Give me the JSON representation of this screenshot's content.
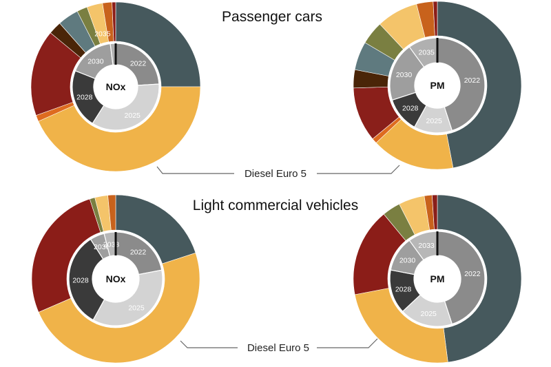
{
  "titles": {
    "top": "Passenger cars",
    "bottom": "Light commercial vehicles"
  },
  "callouts": {
    "top": "Diesel Euro 5",
    "bottom": "Diesel Euro 5"
  },
  "colors": {
    "slate": "#46595d",
    "gold": "#f0b349",
    "orange": "#de6b1f",
    "red": "#8a1f1a",
    "brown": "#4a2508",
    "teal": "#5f7a7f",
    "olive": "#7a7f41",
    "lightgold": "#f4c46a",
    "darkorange": "#c8621c",
    "darkred": "#8b1d18",
    "yr2022": "#8b8b8b",
    "yr2025": "#d3d3d3",
    "yr2028": "#3a3a3a",
    "yr2030": "#9e9e9e",
    "yr2033": "#b7b7b7",
    "yr2035": "#b0b0b0"
  },
  "chart_data": [
    {
      "type": "pie",
      "group": "Passenger cars",
      "center_label": "NOx",
      "outer": [
        {
          "value": 25.0,
          "color": "slate"
        },
        {
          "value": 43.3,
          "color": "gold"
        },
        {
          "value": 1.2,
          "color": "orange"
        },
        {
          "value": 16.5,
          "color": "red"
        },
        {
          "value": 2.5,
          "color": "brown"
        },
        {
          "value": 4.0,
          "color": "teal"
        },
        {
          "value": 2.0,
          "color": "olive"
        },
        {
          "value": 3.0,
          "color": "lightgold"
        },
        {
          "value": 1.8,
          "color": "darkorange",
          "label": "2035"
        },
        {
          "value": 0.7,
          "color": "darkred"
        }
      ],
      "inner": [
        {
          "year": "2022",
          "value": 24.0,
          "color": "yr2022"
        },
        {
          "year": "2025",
          "value": 35.0,
          "color": "yr2025"
        },
        {
          "year": "2028",
          "value": 22.0,
          "color": "yr2028"
        },
        {
          "year": "2030",
          "value": 17.0,
          "color": "yr2030"
        },
        {
          "year": "",
          "value": 2.0,
          "color": "yr2035"
        }
      ]
    },
    {
      "type": "pie",
      "group": "Passenger cars",
      "center_label": "PM",
      "outer": [
        {
          "value": 47.0,
          "color": "slate"
        },
        {
          "value": 16.0,
          "color": "gold"
        },
        {
          "value": 1.0,
          "color": "orange"
        },
        {
          "value": 10.5,
          "color": "red"
        },
        {
          "value": 3.5,
          "color": "brown"
        },
        {
          "value": 5.5,
          "color": "teal"
        },
        {
          "value": 4.5,
          "color": "olive"
        },
        {
          "value": 8.0,
          "color": "lightgold"
        },
        {
          "value": 3.2,
          "color": "darkorange"
        },
        {
          "value": 0.8,
          "color": "darkred"
        }
      ],
      "inner": [
        {
          "year": "2022",
          "value": 45.0,
          "color": "yr2022"
        },
        {
          "year": "2025",
          "value": 13.0,
          "color": "yr2025"
        },
        {
          "year": "2028",
          "value": 12.0,
          "color": "yr2028"
        },
        {
          "year": "2030",
          "value": 20.0,
          "color": "yr2030"
        },
        {
          "year": "2035",
          "value": 10.0,
          "color": "yr2035"
        }
      ]
    },
    {
      "type": "pie",
      "group": "Light commercial vehicles",
      "center_label": "NOx",
      "outer": [
        {
          "value": 20.0,
          "color": "slate"
        },
        {
          "value": 48.5,
          "color": "gold"
        },
        {
          "value": 26.5,
          "color": "darkred"
        },
        {
          "value": 1.0,
          "color": "olive"
        },
        {
          "value": 2.5,
          "color": "lightgold"
        },
        {
          "value": 1.5,
          "color": "darkorange"
        }
      ],
      "inner": [
        {
          "year": "2022",
          "value": 22.0,
          "color": "yr2022"
        },
        {
          "year": "2025",
          "value": 36.0,
          "color": "yr2025"
        },
        {
          "year": "2028",
          "value": 33.0,
          "color": "yr2028"
        },
        {
          "year": "2030",
          "value": 5.0,
          "color": "yr2030"
        },
        {
          "year": "2033",
          "value": 4.0,
          "color": "yr2033"
        }
      ]
    },
    {
      "type": "pie",
      "group": "Light commercial vehicles",
      "center_label": "PM",
      "outer": [
        {
          "value": 48.0,
          "color": "slate"
        },
        {
          "value": 24.0,
          "color": "gold"
        },
        {
          "value": 17.0,
          "color": "darkred"
        },
        {
          "value": 3.5,
          "color": "olive"
        },
        {
          "value": 5.0,
          "color": "lightgold"
        },
        {
          "value": 1.5,
          "color": "darkorange"
        },
        {
          "value": 1.0,
          "color": "red"
        }
      ],
      "inner": [
        {
          "year": "2022",
          "value": 45.0,
          "color": "yr2022"
        },
        {
          "year": "2025",
          "value": 18.0,
          "color": "yr2025"
        },
        {
          "year": "2028",
          "value": 15.0,
          "color": "yr2028"
        },
        {
          "year": "2030",
          "value": 12.0,
          "color": "yr2030"
        },
        {
          "year": "2033",
          "value": 10.0,
          "color": "yr2033"
        }
      ]
    }
  ]
}
